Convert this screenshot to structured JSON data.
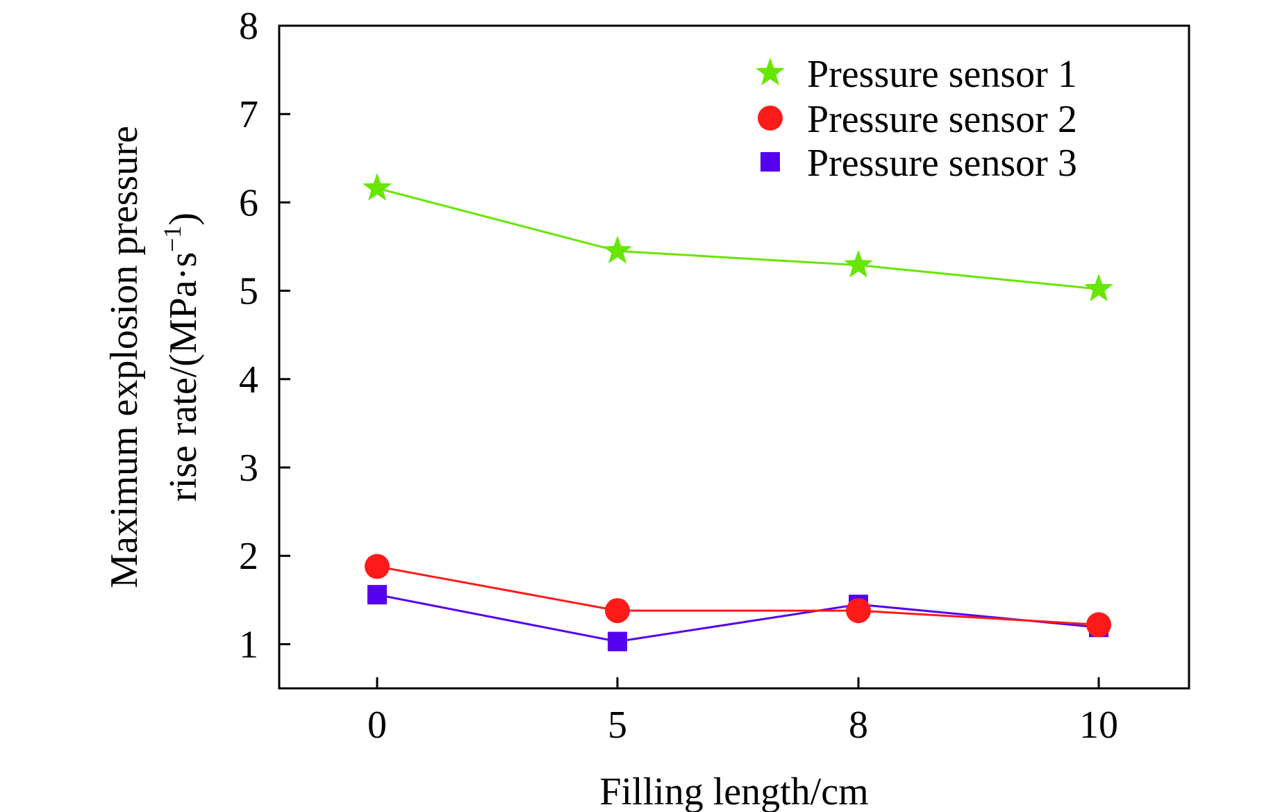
{
  "chart_data": {
    "type": "line",
    "title": "",
    "xlabel": "Filling length/cm",
    "ylabel_line1": "Maximum explosion pressure",
    "ylabel_line2_prefix": "rise rate/(MPa·s",
    "ylabel_superscript": "−1",
    "ylabel_suffix": ")",
    "categories": [
      "0",
      "5",
      "8",
      "10"
    ],
    "ylim": [
      0.5,
      8
    ],
    "yticks": [
      1,
      2,
      3,
      4,
      5,
      6,
      7,
      8
    ],
    "grid": false,
    "legend_position": "top-right",
    "series": [
      {
        "name": "Pressure sensor 1",
        "color": "#66e600",
        "marker": "star",
        "values": [
          6.16,
          5.45,
          5.29,
          5.02
        ]
      },
      {
        "name": "Pressure sensor 2",
        "color": "#ff1a1a",
        "marker": "circle",
        "values": [
          1.88,
          1.38,
          1.38,
          1.22
        ]
      },
      {
        "name": "Pressure sensor 3",
        "color": "#5500ee",
        "marker": "square",
        "values": [
          1.56,
          1.03,
          1.45,
          1.19
        ]
      }
    ]
  }
}
